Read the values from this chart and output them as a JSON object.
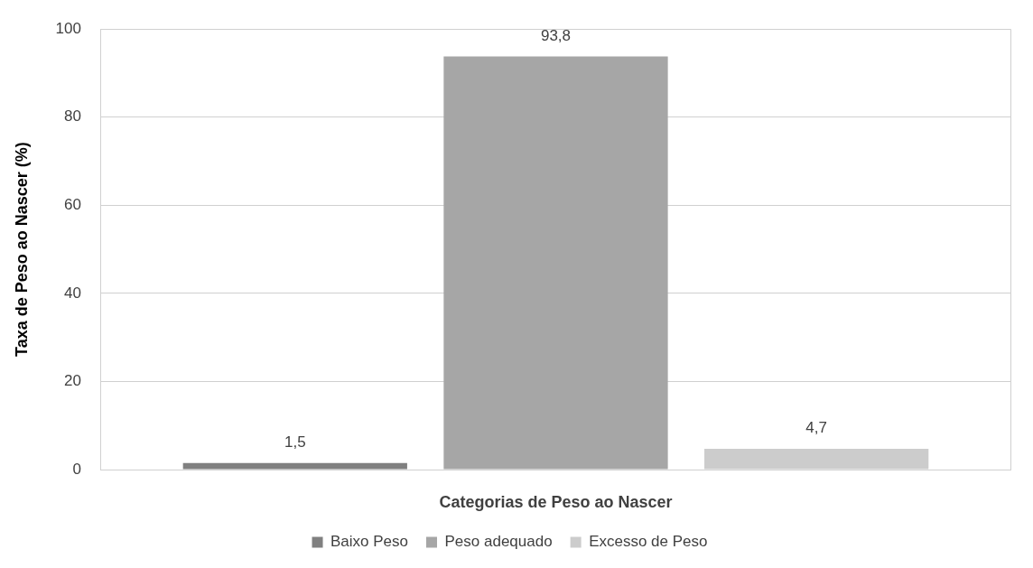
{
  "chart_data": {
    "type": "bar",
    "xlabel": "Categorias de Peso ao Nascer",
    "ylabel": "Taxa de Peso ao Nascer (%)",
    "categories": [
      null
    ],
    "series": [
      {
        "name": "Baixo Peso",
        "color": "#808080",
        "values": [
          1.5
        ],
        "value_labels": [
          "1,5"
        ]
      },
      {
        "name": "Peso adequado",
        "color": "#a6a6a6",
        "values": [
          93.8
        ],
        "value_labels": [
          "93,8"
        ]
      },
      {
        "name": "Excesso de Peso",
        "color": "#cccccc",
        "values": [
          4.7
        ],
        "value_labels": [
          "4,7"
        ]
      }
    ],
    "ylim": [
      0,
      100
    ],
    "yticks": [
      0,
      20,
      40,
      60,
      80,
      100
    ],
    "grid": "y",
    "legend": "bottom"
  }
}
